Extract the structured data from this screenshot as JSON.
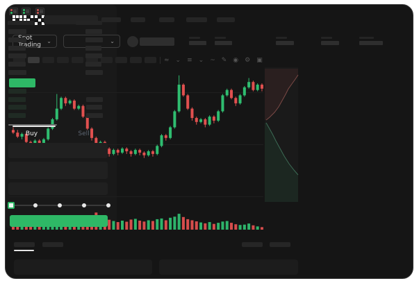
{
  "brand": "OKX",
  "colors": {
    "up": "#2fbd70",
    "down": "#e0504f",
    "accent_green": "#2eb866",
    "window_bg": "#151515",
    "panel_bg": "#191919",
    "depth_ask_fill": "rgba(190,80,75,0.10)",
    "depth_ask_stroke": "#7c4a46",
    "depth_bid_fill": "rgba(46,160,95,0.10)",
    "depth_bid_stroke": "#3c6b55"
  },
  "header": {
    "nav_item_count": 5
  },
  "subheader": {
    "market_selector_label": "Spot Trading",
    "chevron": "⌄",
    "stat_count": 5
  },
  "toolbar": {
    "timeframe_count": 10,
    "icons": [
      {
        "name": "indicators-icon",
        "glyph": "≈"
      },
      {
        "name": "chevron-down-icon",
        "glyph": "⌄"
      },
      {
        "name": "compare-icon",
        "glyph": "≡"
      },
      {
        "name": "chevron-down-icon",
        "glyph": "⌄"
      },
      {
        "name": "line-tool-icon",
        "glyph": "~"
      },
      {
        "name": "draw-icon",
        "glyph": "✎"
      },
      {
        "name": "snapshot-icon",
        "glyph": "◉"
      },
      {
        "name": "settings-icon",
        "glyph": "⚙"
      },
      {
        "name": "fullscreen-icon",
        "glyph": "▣"
      }
    ]
  },
  "chart_data": {
    "type": "candlestick+volume+depth",
    "note": "price values normalized 0-100 (no axis labels visible in screenshot)",
    "grid_prices": [
      82,
      43,
      4
    ],
    "candles": [
      [
        54,
        56,
        51,
        52
      ],
      [
        52,
        54,
        48,
        49
      ],
      [
        49,
        52,
        47,
        51
      ],
      [
        51,
        52,
        44,
        45
      ],
      [
        45,
        46,
        38,
        40
      ],
      [
        40,
        47,
        39,
        46
      ],
      [
        46,
        47,
        42,
        43
      ],
      [
        43,
        48,
        42,
        47
      ],
      [
        47,
        56,
        46,
        55
      ],
      [
        55,
        63,
        54,
        62
      ],
      [
        62,
        81,
        61,
        70
      ],
      [
        70,
        79,
        69,
        78
      ],
      [
        78,
        79,
        72,
        74
      ],
      [
        74,
        77,
        73,
        76
      ],
      [
        76,
        77,
        69,
        70
      ],
      [
        70,
        73,
        69,
        72
      ],
      [
        72,
        73,
        63,
        64
      ],
      [
        64,
        65,
        54,
        55
      ],
      [
        55,
        56,
        46,
        48
      ],
      [
        48,
        49,
        40,
        42
      ],
      [
        42,
        46,
        41,
        45
      ],
      [
        45,
        46,
        39,
        40
      ],
      [
        40,
        41,
        34,
        36
      ],
      [
        36,
        40,
        35,
        39
      ],
      [
        39,
        40,
        35,
        37
      ],
      [
        37,
        41,
        36,
        40
      ],
      [
        40,
        41,
        36,
        38
      ],
      [
        38,
        39,
        34,
        36
      ],
      [
        36,
        40,
        35,
        39
      ],
      [
        39,
        40,
        35,
        37
      ],
      [
        37,
        38,
        33,
        35
      ],
      [
        35,
        39,
        34,
        38
      ],
      [
        38,
        39,
        34,
        36
      ],
      [
        36,
        43,
        35,
        42
      ],
      [
        42,
        51,
        41,
        50
      ],
      [
        50,
        51,
        46,
        48
      ],
      [
        48,
        57,
        47,
        56
      ],
      [
        56,
        69,
        55,
        68
      ],
      [
        68,
        95,
        67,
        88
      ],
      [
        88,
        89,
        79,
        80
      ],
      [
        80,
        81,
        69,
        70
      ],
      [
        70,
        71,
        61,
        63
      ],
      [
        63,
        64,
        58,
        60
      ],
      [
        60,
        63,
        59,
        62
      ],
      [
        62,
        63,
        56,
        58
      ],
      [
        58,
        65,
        57,
        64
      ],
      [
        64,
        65,
        59,
        61
      ],
      [
        61,
        69,
        60,
        68
      ],
      [
        68,
        81,
        67,
        80
      ],
      [
        80,
        85,
        79,
        84
      ],
      [
        84,
        85,
        77,
        78
      ],
      [
        78,
        79,
        72,
        74
      ],
      [
        74,
        81,
        73,
        80
      ],
      [
        80,
        87,
        79,
        86
      ],
      [
        86,
        93,
        85,
        90
      ],
      [
        90,
        91,
        83,
        84
      ],
      [
        84,
        89,
        83,
        88
      ],
      [
        88,
        89,
        83,
        85
      ]
    ],
    "volumes": [
      38,
      42,
      30,
      40,
      34,
      48,
      36,
      40,
      58,
      66,
      78,
      72,
      60,
      52,
      50,
      45,
      58,
      66,
      72,
      95,
      60,
      52,
      55,
      48,
      42,
      50,
      44,
      56,
      60,
      50,
      45,
      52,
      48,
      58,
      62,
      52,
      66,
      72,
      88,
      70,
      58,
      52,
      46,
      40,
      35,
      42,
      32,
      38,
      45,
      48,
      38,
      30,
      26,
      28,
      34,
      24,
      18,
      14
    ],
    "depth": {
      "asks_curve": [
        [
          416,
          11
        ],
        [
          412,
          17
        ],
        [
          407,
          24
        ],
        [
          402,
          31
        ],
        [
          398,
          39
        ],
        [
          393,
          48
        ],
        [
          388,
          57
        ],
        [
          382,
          65
        ],
        [
          375,
          72
        ],
        [
          370,
          76
        ]
      ],
      "bids_curve": [
        [
          370,
          80
        ],
        [
          374,
          87
        ],
        [
          379,
          96
        ],
        [
          384,
          106
        ],
        [
          390,
          117
        ],
        [
          396,
          128
        ],
        [
          403,
          139
        ],
        [
          410,
          148
        ],
        [
          416,
          155
        ]
      ]
    }
  },
  "orderbook": {
    "view_icons": [
      "book-combined-icon",
      "book-bids-icon",
      "book-asks-icon"
    ],
    "asks": [
      {
        "price_w": 26,
        "amount_w": 24
      },
      {
        "price_w": 26,
        "amount_w": 25
      },
      {
        "price_w": 25,
        "amount_w": 23
      },
      {
        "price_w": 26,
        "amount_w": 24
      },
      {
        "price_w": 25,
        "amount_w": 23
      },
      {
        "price_w": 26,
        "amount_w": 25
      }
    ],
    "bids": [
      {
        "price_w": 26,
        "amount_w": 0
      },
      {
        "price_w": 25,
        "amount_w": 24
      },
      {
        "price_w": 26,
        "amount_w": 23
      },
      {
        "price_w": 25,
        "amount_w": 24
      }
    ]
  },
  "trade_panel": {
    "buy_label": "Buy",
    "sell_label": "Sell",
    "field_count": 3,
    "slider": {
      "stops": 5,
      "active_stop": 0
    }
  }
}
